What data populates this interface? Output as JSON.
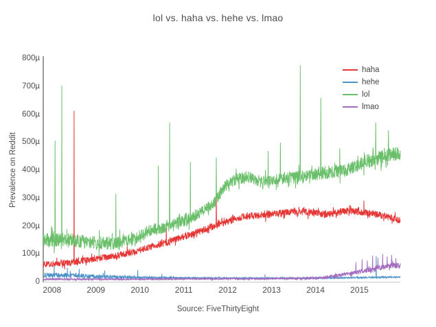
{
  "chart_data": {
    "type": "line",
    "title": "lol vs. haha vs. hehe vs. lmao",
    "ylabel": "Prevalence on Reddit",
    "xlabel": "",
    "source": "Source: FiveThirtyEight",
    "x_range": [
      2007.8,
      2015.93
    ],
    "y_range": [
      0,
      800
    ],
    "y_tick_step": 100,
    "y_tick_labels": [
      "0",
      "100µ",
      "200µ",
      "300µ",
      "400µ",
      "500µ",
      "600µ",
      "700µ",
      "800µ"
    ],
    "x_tick_years": [
      2008,
      2009,
      2010,
      2011,
      2012,
      2013,
      2014,
      2015
    ],
    "grid": false,
    "legend_position": "top-right",
    "axis_color": "#9b9b9b",
    "text_color": "#4d4d4d",
    "series": [
      {
        "name": "haha",
        "color": "#e53636",
        "baseline": [
          [
            2007.8,
            62
          ],
          [
            2008.4,
            68
          ],
          [
            2008.9,
            80
          ],
          [
            2009.4,
            92
          ],
          [
            2009.9,
            108
          ],
          [
            2010.3,
            128
          ],
          [
            2010.7,
            145
          ],
          [
            2011.1,
            165
          ],
          [
            2011.5,
            188
          ],
          [
            2011.9,
            212
          ],
          [
            2012.3,
            232
          ],
          [
            2012.7,
            238
          ],
          [
            2013.1,
            244
          ],
          [
            2013.5,
            250
          ],
          [
            2013.9,
            250
          ],
          [
            2014.25,
            240
          ],
          [
            2014.6,
            254
          ],
          [
            2015.0,
            250
          ],
          [
            2015.4,
            242
          ],
          [
            2015.93,
            220
          ]
        ],
        "noise": [
          [
            2007.8,
            11
          ],
          [
            2010.0,
            12
          ],
          [
            2012.0,
            13
          ],
          [
            2015.93,
            12
          ]
        ],
        "spikes": [
          [
            2008.5,
            612
          ],
          [
            2010.6,
            195
          ],
          [
            2011.74,
            322
          ],
          [
            2015.1,
            290
          ]
        ]
      },
      {
        "name": "hehe",
        "color": "#4e93c8",
        "baseline": [
          [
            2007.8,
            24
          ],
          [
            2008.4,
            23
          ],
          [
            2009.0,
            19
          ],
          [
            2009.6,
            17
          ],
          [
            2010.2,
            15
          ],
          [
            2011.0,
            14
          ],
          [
            2012.0,
            13
          ],
          [
            2013.0,
            13
          ],
          [
            2014.0,
            13
          ],
          [
            2015.0,
            15
          ],
          [
            2015.93,
            17
          ]
        ],
        "noise": [
          [
            2007.8,
            9
          ],
          [
            2008.8,
            7
          ],
          [
            2009.6,
            5
          ],
          [
            2010.3,
            3
          ],
          [
            2011.0,
            2.5
          ],
          [
            2013.0,
            2
          ],
          [
            2015.93,
            3
          ]
        ],
        "spikes": [
          [
            2008.05,
            56
          ],
          [
            2008.35,
            50
          ],
          [
            2008.62,
            46
          ],
          [
            2009.2,
            40
          ],
          [
            2009.95,
            42
          ],
          [
            2010.5,
            28
          ],
          [
            2015.38,
            92
          ]
        ]
      },
      {
        "name": "lol",
        "color": "#6abf6a",
        "baseline": [
          [
            2007.8,
            148
          ],
          [
            2008.3,
            152
          ],
          [
            2008.8,
            142
          ],
          [
            2009.4,
            136
          ],
          [
            2009.9,
            155
          ],
          [
            2010.2,
            182
          ],
          [
            2010.5,
            192
          ],
          [
            2010.8,
            208
          ],
          [
            2011.1,
            222
          ],
          [
            2011.4,
            248
          ],
          [
            2011.7,
            285
          ],
          [
            2011.95,
            345
          ],
          [
            2012.2,
            368
          ],
          [
            2012.5,
            375
          ],
          [
            2012.8,
            355
          ],
          [
            2013.1,
            368
          ],
          [
            2013.5,
            372
          ],
          [
            2013.9,
            382
          ],
          [
            2014.3,
            392
          ],
          [
            2014.7,
            398
          ],
          [
            2015.0,
            422
          ],
          [
            2015.4,
            442
          ],
          [
            2015.93,
            462
          ]
        ],
        "noise": [
          [
            2007.8,
            26
          ],
          [
            2009.5,
            22
          ],
          [
            2011.0,
            20
          ],
          [
            2012.5,
            21
          ],
          [
            2014.0,
            22
          ],
          [
            2015.93,
            26
          ]
        ],
        "spikes": [
          [
            2008.07,
            505
          ],
          [
            2008.22,
            702
          ],
          [
            2009.45,
            315
          ],
          [
            2010.42,
            415
          ],
          [
            2010.68,
            570
          ],
          [
            2011.15,
            428
          ],
          [
            2011.74,
            445
          ],
          [
            2012.92,
            468
          ],
          [
            2013.2,
            498
          ],
          [
            2013.65,
            775
          ],
          [
            2014.12,
            658
          ],
          [
            2014.55,
            478
          ],
          [
            2015.37,
            570
          ],
          [
            2015.66,
            542
          ]
        ]
      },
      {
        "name": "lmao",
        "color": "#a46cbf",
        "baseline": [
          [
            2007.8,
            9
          ],
          [
            2009.0,
            9
          ],
          [
            2010.0,
            9.5
          ],
          [
            2011.0,
            10
          ],
          [
            2012.0,
            10.5
          ],
          [
            2013.0,
            11
          ],
          [
            2013.8,
            12
          ],
          [
            2014.2,
            15
          ],
          [
            2014.6,
            24
          ],
          [
            2014.9,
            32
          ],
          [
            2015.2,
            42
          ],
          [
            2015.5,
            52
          ],
          [
            2015.75,
            58
          ],
          [
            2015.93,
            58
          ]
        ],
        "noise": [
          [
            2007.8,
            3
          ],
          [
            2010.0,
            2.5
          ],
          [
            2013.0,
            2.5
          ],
          [
            2014.3,
            5
          ],
          [
            2014.8,
            8
          ],
          [
            2015.2,
            9
          ],
          [
            2015.93,
            10
          ]
        ],
        "spikes": [
          [
            2012.85,
            26
          ],
          [
            2014.92,
            70
          ],
          [
            2015.06,
            80
          ],
          [
            2015.18,
            76
          ],
          [
            2015.3,
            94
          ],
          [
            2015.42,
            86
          ],
          [
            2015.53,
            100
          ],
          [
            2015.63,
            90
          ],
          [
            2015.73,
            96
          ],
          [
            2015.83,
            84
          ]
        ]
      }
    ]
  }
}
